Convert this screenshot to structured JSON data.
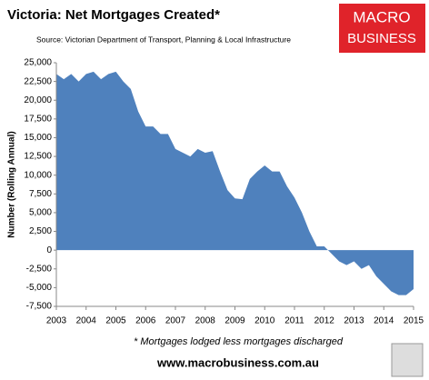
{
  "chart_data": {
    "type": "area",
    "title": "Victoria: Net Mortgages Created*",
    "subtitle": "Source: Victorian Department of Transport, Planning & Local Infrastructure",
    "ylabel": "Number (Rolling Annual)",
    "footnote": "* Mortgages lodged less mortgages discharged",
    "logo": [
      "MACRO",
      "BUSINESS"
    ],
    "website": "www.macrobusiness.com.au",
    "color": "#4f81bd",
    "x": [
      2003,
      2003.25,
      2003.5,
      2003.75,
      2004,
      2004.25,
      2004.5,
      2004.75,
      2005,
      2005.25,
      2005.5,
      2005.75,
      2006,
      2006.25,
      2006.5,
      2006.75,
      2007,
      2007.25,
      2007.5,
      2007.75,
      2008,
      2008.25,
      2008.5,
      2008.75,
      2009,
      2009.25,
      2009.5,
      2009.75,
      2010,
      2010.25,
      2010.5,
      2010.75,
      2011,
      2011.25,
      2011.5,
      2011.75,
      2012,
      2012.25,
      2012.5,
      2012.75,
      2013,
      2013.25,
      2013.5,
      2013.75,
      2014,
      2014.25,
      2014.5,
      2014.75,
      2015
    ],
    "values": [
      23500,
      22800,
      23500,
      22500,
      23500,
      23800,
      22800,
      23500,
      23800,
      22500,
      21500,
      18500,
      16500,
      16500,
      15500,
      15500,
      13500,
      13000,
      12500,
      13500,
      13000,
      13200,
      10500,
      8000,
      6900,
      6800,
      9500,
      10500,
      11300,
      10500,
      10500,
      8500,
      7000,
      5000,
      2500,
      500,
      500,
      -500,
      -1500,
      -2000,
      -1500,
      -2500,
      -2000,
      -3500,
      -4500,
      -5500,
      -6000,
      -6000,
      -5200
    ],
    "xlim": [
      2003,
      2015
    ],
    "xticks": [
      2003,
      2004,
      2005,
      2006,
      2007,
      2008,
      2009,
      2010,
      2011,
      2012,
      2013,
      2014,
      2015
    ],
    "ylim": [
      -7500,
      25000
    ],
    "yticks": [
      {
        "value": -7500,
        "label": "-7,500"
      },
      {
        "value": -5000,
        "label": "-5,000"
      },
      {
        "value": -2500,
        "label": "-2,500"
      },
      0,
      {
        "value": 2500,
        "label": "2,500"
      },
      {
        "value": 5000,
        "label": "5,000"
      },
      {
        "value": 7500,
        "label": "7,500"
      },
      {
        "value": 10000,
        "label": "10,000"
      },
      {
        "value": 12500,
        "label": "12,500"
      },
      {
        "value": 15000,
        "label": "15,000"
      },
      {
        "value": 17500,
        "label": "17,500"
      },
      {
        "value": 20000,
        "label": "20,000"
      },
      {
        "value": 22500,
        "label": "22,500"
      },
      {
        "value": 25000,
        "label": "25,000"
      }
    ]
  }
}
